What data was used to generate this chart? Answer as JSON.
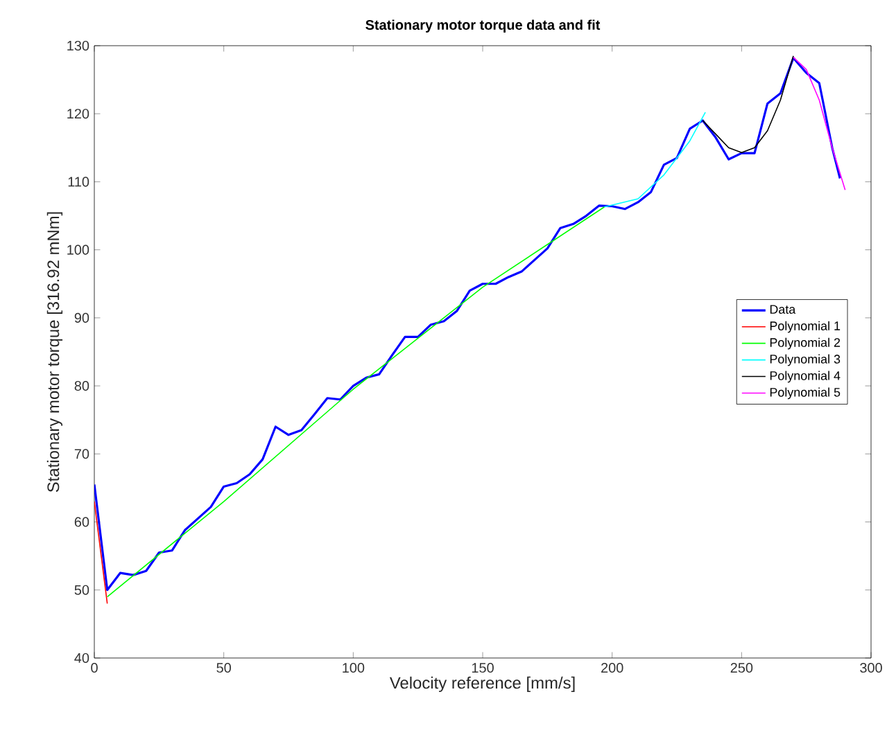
{
  "chart_data": {
    "type": "line",
    "title": "Stationary motor torque data and fit",
    "xlabel": "Velocity reference [mm/s]",
    "ylabel": "Stationary motor torque [316.92 mNm]",
    "xlim": [
      0,
      300
    ],
    "ylim": [
      40,
      130
    ],
    "xticks": [
      0,
      50,
      100,
      150,
      200,
      250,
      300
    ],
    "yticks": [
      40,
      50,
      60,
      70,
      80,
      90,
      100,
      110,
      120,
      130
    ],
    "grid": false,
    "legend": "right",
    "marker": "none",
    "line_style": "solid",
    "series": [
      {
        "name": "Data",
        "color": "#0000ff",
        "x": [
          0,
          5,
          10,
          15,
          20,
          25,
          30,
          35,
          40,
          45,
          50,
          55,
          60,
          65,
          70,
          75,
          80,
          85,
          90,
          95,
          100,
          105,
          110,
          115,
          120,
          125,
          130,
          135,
          140,
          145,
          150,
          155,
          160,
          165,
          170,
          175,
          180,
          185,
          190,
          195,
          200,
          205,
          210,
          215,
          220,
          225,
          230,
          235,
          240,
          245,
          250,
          255,
          260,
          265,
          270,
          275,
          280,
          285,
          288
        ],
        "values": [
          65.5,
          50,
          52.5,
          52.2,
          52.8,
          55.5,
          55.8,
          58.8,
          60.5,
          62.2,
          65.2,
          65.7,
          67,
          69.2,
          74,
          72.8,
          73.5,
          75.8,
          78.2,
          78,
          80,
          81.2,
          81.7,
          84.5,
          87.2,
          87.2,
          89,
          89.5,
          91,
          94,
          95,
          95,
          96,
          96.8,
          98.5,
          100.2,
          103.2,
          103.8,
          105,
          106.5,
          106.4,
          106,
          107,
          108.5,
          112.5,
          113.5,
          117.8,
          119,
          116.5,
          113.3,
          114.2,
          114.2,
          121.5,
          123,
          128.2,
          126,
          124.5,
          115,
          110.5
        ]
      },
      {
        "name": "Polynomial 1",
        "color": "#ff0000",
        "x": [
          0,
          5
        ],
        "values": [
          63,
          48
        ]
      },
      {
        "name": "Polynomial 2",
        "color": "#00ff00",
        "x": [
          5,
          50,
          100,
          150,
          197
        ],
        "values": [
          49,
          63,
          79.5,
          94.5,
          106.3
        ]
      },
      {
        "name": "Polynomial 3",
        "color": "#00ffff",
        "x": [
          197,
          210,
          220,
          230,
          236
        ],
        "values": [
          106.3,
          107.5,
          111,
          116,
          120.2
        ]
      },
      {
        "name": "Polynomial 4",
        "color": "#000000",
        "x": [
          235,
          240,
          245,
          250,
          255,
          260,
          265,
          270
        ],
        "values": [
          119,
          117,
          115,
          114.3,
          115,
          117.5,
          122,
          128.5
        ]
      },
      {
        "name": "Polynomial 5",
        "color": "#ff00ff",
        "x": [
          270,
          275,
          280,
          285,
          290
        ],
        "values": [
          128.3,
          126.5,
          122,
          115,
          108.8
        ]
      }
    ]
  }
}
